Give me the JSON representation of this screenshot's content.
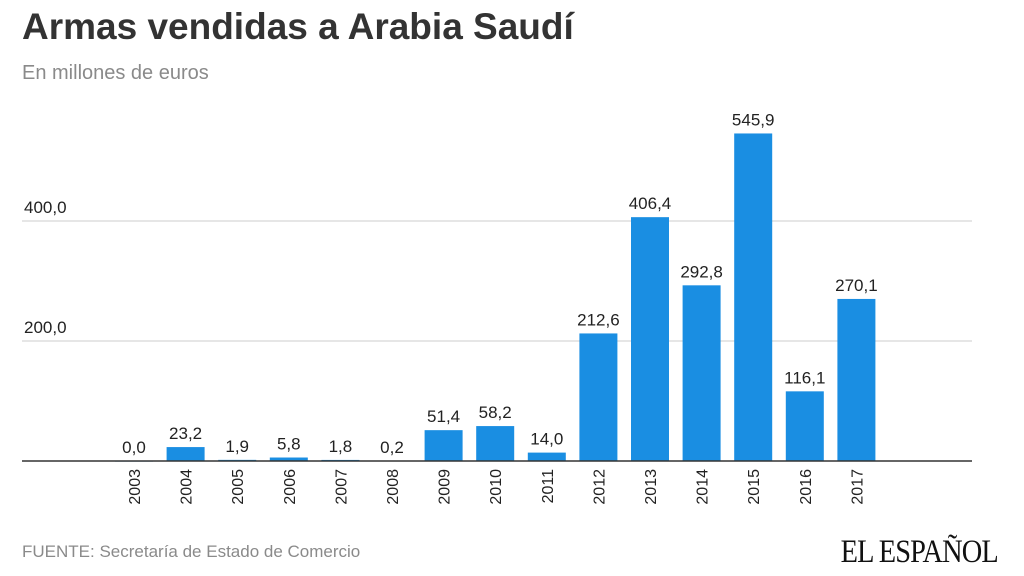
{
  "chart_data": {
    "type": "bar",
    "title": "Armas vendidas a Arabia Saudí",
    "subtitle": "En millones de euros",
    "xlabel": "",
    "ylabel": "",
    "categories": [
      "2003",
      "2004",
      "2005",
      "2006",
      "2007",
      "2008",
      "2009",
      "2010",
      "2011",
      "2012",
      "2013",
      "2014",
      "2015",
      "2016",
      "2017"
    ],
    "values": [
      0.0,
      23.2,
      1.9,
      5.8,
      1.8,
      0.2,
      51.4,
      58.2,
      14.0,
      212.6,
      406.4,
      292.8,
      545.9,
      116.1,
      270.1
    ],
    "value_labels": [
      "0,0",
      "23,2",
      "1,9",
      "5,8",
      "1,8",
      "0,2",
      "51,4",
      "58,2",
      "14,0",
      "212,6",
      "406,4",
      "292,8",
      "545,9",
      "116,1",
      "270,1"
    ],
    "y_ticks": [
      200,
      400
    ],
    "y_tick_labels": [
      "200,0",
      "400,0"
    ],
    "ylim": [
      0,
      600
    ],
    "grid": true,
    "bar_color": "#1a8ee2"
  },
  "footer": {
    "source": "FUENTE: Secretaría de Estado de Comercio",
    "logo": "EL ESPAÑOL"
  }
}
